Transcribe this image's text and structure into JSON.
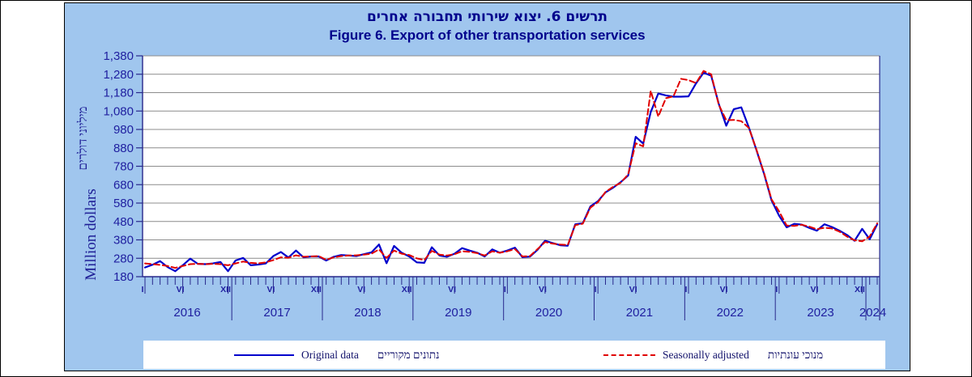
{
  "title_he": "תרשים 6. יצוא שירותי תחבורה אחרים",
  "title_en": "Figure 6. Export of other transportation services",
  "y_axis": {
    "label_he": "מיליוני דולרים",
    "label_en": "Million dollars",
    "min": 180,
    "max": 1380,
    "step": 100
  },
  "legend": {
    "original": {
      "label_en": "Original data",
      "label_he": "נתונים מקוריים",
      "color": "#0000CC",
      "style": "solid"
    },
    "seasonally_adjusted": {
      "label_en": "Seasonally adjusted",
      "label_he": "מנוכי עונתיות",
      "color": "#E00000",
      "style": "dashed"
    }
  },
  "colors": {
    "panel_background": "#A0C6EE",
    "plot_background": "#FFFFFF",
    "gridline": "#8C8C8C",
    "axis": "#28288C",
    "axis_text": "#2020A0",
    "title_text": "#00008C",
    "original_line": "#0000CC",
    "adjusted_line": "#E00000"
  },
  "chart_data": {
    "type": "line",
    "title": "Figure 6. Export of other transportation services",
    "title_he": "תרשים 6. יצוא שירותי תחבורה אחרים",
    "xlabel": "",
    "ylabel": "Million dollars",
    "ylim": [
      180,
      1380
    ],
    "y_ticks": [
      180,
      280,
      380,
      480,
      580,
      680,
      780,
      880,
      980,
      1080,
      1180,
      1280,
      1380
    ],
    "grid": "horizontal",
    "legend_position": "bottom",
    "x_start": "2016-01",
    "x_end": "2024-02",
    "months_count": 98,
    "x_month_tick_labels": [
      {
        "label": "I",
        "index": 0
      },
      {
        "label": "VI",
        "index": 5
      },
      {
        "label": "XII",
        "index": 11
      },
      {
        "label": "VI",
        "index": 17
      },
      {
        "label": "XII",
        "index": 23
      },
      {
        "label": "VI",
        "index": 29
      },
      {
        "label": "XII",
        "index": 35
      },
      {
        "label": "VI",
        "index": 41
      },
      {
        "label": "I",
        "index": 48
      },
      {
        "label": "VI",
        "index": 53
      },
      {
        "label": "I",
        "index": 60
      },
      {
        "label": "VI",
        "index": 65
      },
      {
        "label": "I",
        "index": 72
      },
      {
        "label": "VI",
        "index": 77
      },
      {
        "label": "I",
        "index": 84
      },
      {
        "label": "VI",
        "index": 89
      },
      {
        "label": "XII",
        "index": 95
      }
    ],
    "year_labels": [
      "2016",
      "2017",
      "2018",
      "2019",
      "2020",
      "2021",
      "2022",
      "2023",
      "2024"
    ],
    "series": [
      {
        "name": "Original data",
        "name_he": "נתונים מקוריים",
        "color": "#0000CC",
        "dash": "solid",
        "values": [
          230,
          245,
          265,
          232,
          210,
          242,
          278,
          250,
          248,
          252,
          260,
          210,
          268,
          282,
          242,
          246,
          252,
          292,
          314,
          284,
          322,
          285,
          290,
          290,
          268,
          288,
          298,
          295,
          292,
          302,
          312,
          355,
          253,
          347,
          310,
          290,
          258,
          255,
          340,
          295,
          288,
          305,
          335,
          322,
          310,
          290,
          328,
          310,
          322,
          338,
          286,
          289,
          326,
          375,
          363,
          351,
          348,
          465,
          470,
          562,
          590,
          638,
          663,
          693,
          730,
          940,
          903,
          1075,
          1175,
          1165,
          1158,
          1158,
          1160,
          1230,
          1288,
          1272,
          1120,
          1000,
          1090,
          1100,
          990,
          868,
          740,
          595,
          512,
          448,
          467,
          463,
          445,
          430,
          465,
          450,
          430,
          407,
          375,
          440,
          383,
          465
        ]
      },
      {
        "name": "Seasonally adjusted",
        "name_he": "מנוכי עונתיות",
        "color": "#E00000",
        "dash": "dashed",
        "values": [
          252,
          248,
          244,
          238,
          228,
          238,
          248,
          250,
          248,
          250,
          248,
          242,
          252,
          262,
          255,
          252,
          258,
          270,
          285,
          283,
          296,
          288,
          290,
          292,
          272,
          285,
          292,
          295,
          296,
          300,
          305,
          328,
          282,
          322,
          305,
          298,
          280,
          270,
          320,
          300,
          295,
          302,
          318,
          315,
          308,
          295,
          318,
          310,
          318,
          330,
          290,
          292,
          330,
          368,
          360,
          355,
          352,
          460,
          468,
          555,
          585,
          640,
          668,
          690,
          735,
          905,
          888,
          1190,
          1050,
          1150,
          1160,
          1255,
          1248,
          1232,
          1298,
          1280,
          1115,
          1030,
          1032,
          1025,
          988,
          870,
          745,
          600,
          535,
          458,
          456,
          462,
          452,
          438,
          446,
          442,
          425,
          398,
          378,
          372,
          398,
          470
        ]
      }
    ]
  }
}
